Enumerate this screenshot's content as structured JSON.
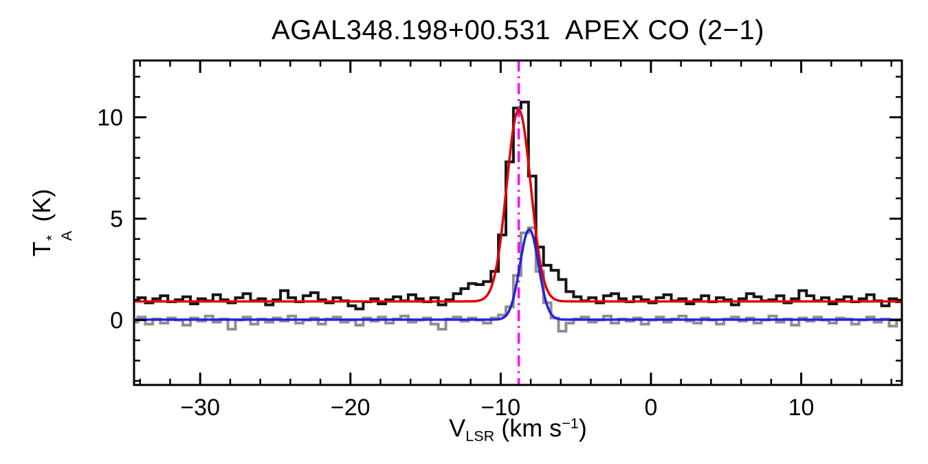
{
  "title": "AGAL348.198+00.531  APEX CO (2−1)",
  "ylabel": {
    "pre": "T",
    "sup": "*",
    "sub": "A",
    "post": " (K)"
  },
  "xlabel": {
    "pre": "V",
    "sub": "LSR",
    "mid": " (km s",
    "sup": "−1",
    "post": ")"
  },
  "colors": {
    "spectrum_main": "#141414",
    "spectrum_secondary": "#8f8f8f",
    "fit_main": "#e10000",
    "fit_secondary": "#2222e0",
    "marker_line": "#ff00ff",
    "axes": "#000000",
    "background": "#ffffff"
  },
  "chart_data": {
    "type": "line",
    "title": "AGAL348.198+00.531  APEX CO (2−1)",
    "xlabel": "V_LSR (km s^-1)",
    "ylabel": "T_A^* (K)",
    "xlim": [
      -34.4,
      16.7
    ],
    "ylim": [
      -3.2,
      12.8
    ],
    "grid": false,
    "legend": "none",
    "x_ticks": {
      "values": [
        -30,
        -20,
        -10,
        0,
        10
      ],
      "labels": [
        "−30",
        "−20",
        "−10",
        "0",
        "10"
      ],
      "minor_step": 2
    },
    "y_ticks": {
      "values": [
        0,
        5,
        10
      ],
      "labels": [
        "0",
        "5",
        "10"
      ],
      "minor_step": 1
    },
    "x_start": -34.4,
    "x_step": 0.5,
    "series": [
      {
        "name": "observed-spectrum-black-histogram",
        "style": "histogram",
        "color": "#141414",
        "values": [
          0.95,
          1.1,
          0.85,
          1.05,
          1.2,
          0.9,
          1.0,
          1.15,
          0.8,
          1.05,
          0.95,
          1.25,
          1.0,
          0.85,
          1.1,
          1.3,
          0.95,
          1.05,
          0.75,
          1.0,
          1.45,
          1.1,
          0.9,
          1.2,
          1.35,
          1.0,
          0.85,
          1.1,
          0.95,
          0.7,
          0.55,
          0.9,
          1.05,
          0.8,
          1.0,
          1.15,
          0.95,
          1.25,
          1.05,
          0.9,
          1.1,
          0.75,
          1.0,
          1.3,
          1.55,
          1.8,
          1.75,
          1.9,
          2.4,
          4.2,
          7.8,
          10.45,
          10.75,
          7.1,
          3.6,
          2.7,
          2.45,
          2.0,
          1.4,
          1.15,
          0.95,
          1.1,
          0.85,
          1.2,
          1.3,
          1.05,
          0.9,
          1.15,
          1.0,
          0.85,
          1.1,
          1.25,
          0.95,
          1.05,
          0.8,
          1.0,
          1.2,
          0.9,
          1.1,
          1.0,
          0.75,
          1.05,
          1.3,
          1.15,
          0.95,
          1.0,
          1.2,
          0.85,
          1.05,
          1.45,
          1.2,
          0.95,
          1.1,
          0.8,
          1.0,
          1.15,
          0.9,
          1.05,
          1.25,
          0.95,
          0.7,
          1.05,
          0.9
        ]
      },
      {
        "name": "secondary-spectrum-gray-histogram",
        "style": "histogram",
        "color": "#8f8f8f",
        "values": [
          -0.1,
          0.15,
          -0.2,
          0.05,
          -0.15,
          0.1,
          0.0,
          -0.25,
          0.1,
          -0.05,
          0.2,
          -0.1,
          0.05,
          -0.45,
          0.0,
          0.15,
          -0.2,
          0.05,
          -0.1,
          0.1,
          -0.05,
          0.2,
          -0.15,
          0.0,
          0.1,
          -0.2,
          0.05,
          0.15,
          -0.1,
          0.0,
          -0.25,
          0.1,
          -0.05,
          0.15,
          -0.15,
          0.05,
          0.2,
          -0.1,
          0.0,
          0.1,
          -0.2,
          -0.45,
          0.05,
          0.15,
          -0.05,
          0.1,
          0.0,
          -0.15,
          0.1,
          0.25,
          0.65,
          2.2,
          4.3,
          4.55,
          2.4,
          0.85,
          0.1,
          -0.55,
          -0.15,
          0.05,
          0.15,
          -0.1,
          0.0,
          0.2,
          -0.15,
          0.05,
          -0.05,
          0.1,
          -0.2,
          0.0,
          0.15,
          -0.1,
          0.05,
          0.2,
          -0.05,
          -0.15,
          0.1,
          0.0,
          -0.2,
          0.05,
          0.15,
          -0.05,
          0.1,
          -0.15,
          0.0,
          0.2,
          -0.1,
          0.05,
          -0.25,
          0.1,
          -0.05,
          0.15,
          0.0,
          -0.15,
          0.1,
          0.05,
          -0.2,
          0.0,
          0.15,
          -0.1,
          0.05,
          -0.3,
          0.0
        ]
      },
      {
        "name": "gaussian-fit-red",
        "style": "gaussian",
        "color": "#e10000",
        "baseline": 0.92,
        "amplitude": 9.45,
        "center": -8.8,
        "sigma": 0.8
      },
      {
        "name": "gaussian-fit-blue",
        "style": "gaussian",
        "color": "#2222e0",
        "baseline": 0.02,
        "amplitude": 4.45,
        "center": -8.1,
        "sigma": 0.62
      }
    ],
    "vline": {
      "x": -8.8,
      "color": "#ff00ff",
      "style": "dash-dot"
    }
  }
}
